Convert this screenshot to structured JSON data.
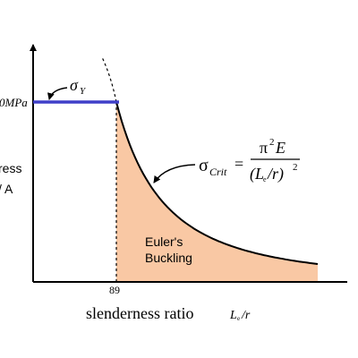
{
  "y_axis": {
    "yield_value": "0MPa",
    "label_line1": "ress",
    "label_line2": "/ A"
  },
  "yield_label": {
    "symbol": "σ",
    "sub": "Y"
  },
  "formula": {
    "lhs_symbol": "σ",
    "lhs_sub": "Crit",
    "equals": "=",
    "num_pi": "π",
    "num_exp": "2",
    "num_e": "E",
    "den_open": "(L",
    "den_sub": "e",
    "den_close": "/r)",
    "den_exp": "2"
  },
  "region_label": {
    "line1": "Euler's",
    "line2": "Buckling"
  },
  "x_axis": {
    "transition": "89",
    "title": "slenderness ratio",
    "unit_l": "L",
    "unit_sub": "e",
    "unit_rest": "/r"
  }
}
